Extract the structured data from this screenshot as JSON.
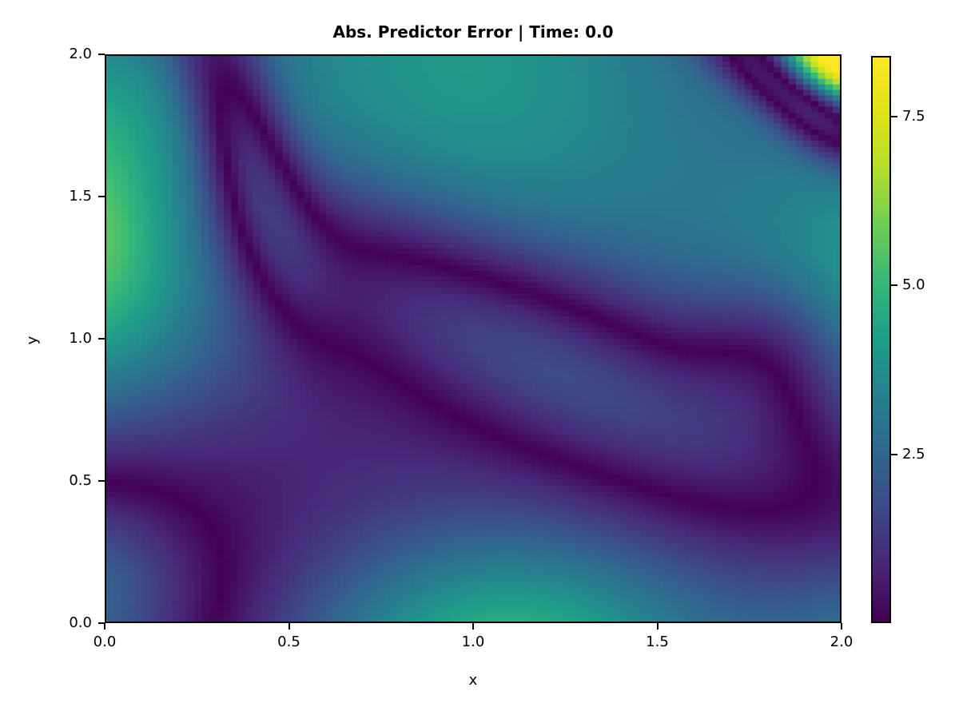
{
  "figure": {
    "title": "Abs. Predictor Error | Time: 0.0",
    "background_color": "#ffffff",
    "text_color": "#000000"
  },
  "chart_data": {
    "type": "heatmap",
    "title": "Abs. Predictor Error | Time: 0.0",
    "xlabel": "x",
    "ylabel": "y",
    "x_range": [
      0.0,
      2.0
    ],
    "y_range": [
      0.0,
      2.0
    ],
    "x_ticks": [
      {
        "value": 0.0,
        "label": "0.0"
      },
      {
        "value": 0.5,
        "label": "0.5"
      },
      {
        "value": 1.0,
        "label": "1.0"
      },
      {
        "value": 1.5,
        "label": "1.5"
      },
      {
        "value": 2.0,
        "label": "2.0"
      }
    ],
    "y_ticks": [
      {
        "value": 0.0,
        "label": "0.0"
      },
      {
        "value": 0.5,
        "label": "0.5"
      },
      {
        "value": 1.0,
        "label": "1.0"
      },
      {
        "value": 1.5,
        "label": "1.5"
      },
      {
        "value": 2.0,
        "label": "2.0"
      }
    ],
    "colormap": "viridis",
    "colormap_stops": [
      [
        0.0,
        "#440154"
      ],
      [
        0.1,
        "#482878"
      ],
      [
        0.2,
        "#3e4989"
      ],
      [
        0.3,
        "#31688e"
      ],
      [
        0.4,
        "#26828e"
      ],
      [
        0.5,
        "#1f9e89"
      ],
      [
        0.6,
        "#35b779"
      ],
      [
        0.7,
        "#6dcd59"
      ],
      [
        0.8,
        "#b4de2c"
      ],
      [
        0.9,
        "#dde318"
      ],
      [
        1.0,
        "#fde725"
      ]
    ],
    "vmin": 0.0,
    "vmax": 8.4,
    "colorbar_ticks": [
      {
        "value": 2.5,
        "label": "2.5"
      },
      {
        "value": 5.0,
        "label": "5.0"
      },
      {
        "value": 7.5,
        "label": "7.5"
      }
    ],
    "grid_resolution": 100,
    "value_model": {
      "description": "Absolute error field |F(x,y)| estimated from the pixels. F is a sum of (optionally rotated) gaussian terms amp*exp(-(u/a)^2-(v/b)^2); dark bands are zero crossings of F.",
      "terms": [
        {
          "amp": 2.6,
          "cx": 1.05,
          "cy": 1.55,
          "a": 1.15,
          "b": 0.85,
          "r": 0
        },
        {
          "amp": 8.6,
          "cx": 2.0,
          "cy": 2.0,
          "a": 0.19,
          "b": 0.19,
          "r": 0
        },
        {
          "amp": -6.0,
          "cx": 1.88,
          "cy": 1.87,
          "a": 0.3,
          "b": 0.105,
          "r": -48
        },
        {
          "amp": 5.6,
          "cx": -0.15,
          "cy": 1.42,
          "a": 0.45,
          "b": 0.7,
          "r": 0
        },
        {
          "amp": 5.2,
          "cx": 1.1,
          "cy": -0.18,
          "a": 0.6,
          "b": 0.5,
          "r": 0
        },
        {
          "amp": 2.4,
          "cx": 0.95,
          "cy": 2.3,
          "a": 0.75,
          "b": 0.75,
          "r": 0
        },
        {
          "amp": -3.4,
          "cx": 1.08,
          "cy": 1.0,
          "a": 1.05,
          "b": 0.3,
          "r": -32
        },
        {
          "amp": -3.6,
          "cx": 0.37,
          "cy": 1.72,
          "a": 0.55,
          "b": 0.13,
          "r": 104
        },
        {
          "amp": 3.6,
          "cx": 2.25,
          "cy": 1.15,
          "a": 0.55,
          "b": 0.6,
          "r": 0
        },
        {
          "amp": 3.0,
          "cx": 2.2,
          "cy": -0.15,
          "a": 0.45,
          "b": 0.45,
          "r": 0
        },
        {
          "amp": -3.0,
          "cx": -0.12,
          "cy": 0.1,
          "a": 0.38,
          "b": 0.42,
          "r": 0
        },
        {
          "amp": -1.8,
          "cx": 1.82,
          "cy": 0.95,
          "a": 0.22,
          "b": 0.28,
          "r": 0
        }
      ]
    },
    "notable_features": [
      {
        "feature": "global maximum ~8.4 (yellow) at corner (2.0, 2.0), decaying within ~0.15 units"
      },
      {
        "feature": "near-zero dark band cutting the top-right corner from (1.77, 2.0) to (2.0, 1.74)"
      },
      {
        "feature": "large tilted near-zero loop: enters top edge at x~0.31, through (0.45,1.4), diagonal through (1.0,0.95), to dark pool near (1.7,0.5) with hook up to (1.87,0.85)"
      },
      {
        "feature": "near-zero arc in bottom-left from (0, 0.52) to (0.3, 0); inside corner value ~2 (blue)"
      },
      {
        "feature": "teal maxima ~5 at left edge (0, 1.4), ~4.6 at bottom edge (1.1, 0), ~3.8 at top-left corner, ~3.4 at right edge (2, 1.15), ~2.7 at bottom-right corner"
      },
      {
        "feature": "loop interior purple ~1.0-1.5; mid-upper background steel blue ~2.5-3.2"
      }
    ]
  }
}
